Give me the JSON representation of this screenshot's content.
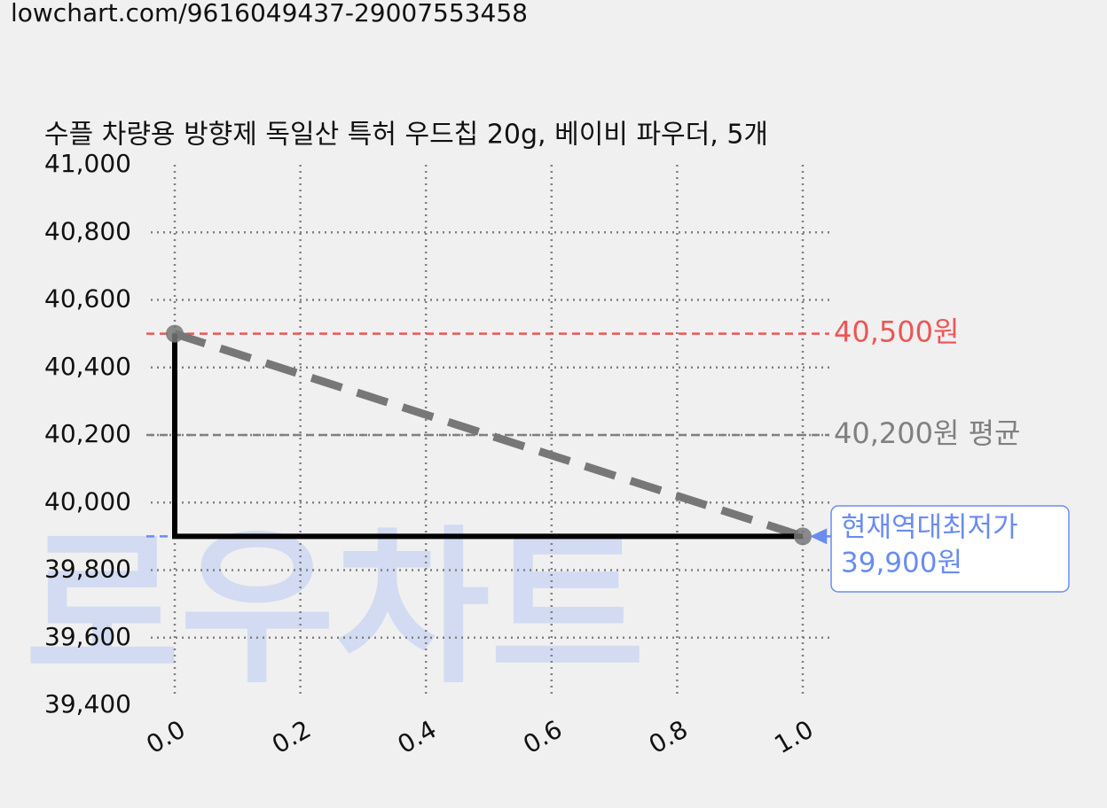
{
  "page_url": "lowchart.com/9616049437-29007553458",
  "watermark": "로우차트",
  "chart_data": {
    "type": "line",
    "title": "수플 차량용 방향제 독일산 특허 우드칩 20g, 베이비 파우더, 5개",
    "x": [
      0,
      1
    ],
    "series": [
      {
        "color": "#000000",
        "values": [
          40500,
          39900
        ]
      }
    ],
    "trend_color": "#777777",
    "xlim": [
      0,
      1
    ],
    "ylim": [
      39400,
      41000
    ],
    "xticks": [
      {
        "value": 0,
        "label": "0.0"
      },
      0.2,
      0.4,
      0.6,
      0.8,
      {
        "value": 1,
        "label": "1.0"
      }
    ],
    "yticks": [
      {
        "value": 39400,
        "label": "39,400"
      },
      {
        "value": 39600,
        "label": "39,600"
      },
      {
        "value": 39800,
        "label": "39,800"
      },
      {
        "value": 40000,
        "label": "40,000"
      },
      {
        "value": 40200,
        "label": "40,200"
      },
      {
        "value": 40400,
        "label": "40,400"
      },
      {
        "value": 40600,
        "label": "40,600"
      },
      {
        "value": 40800,
        "label": "40,800"
      },
      {
        "value": 41000,
        "label": "41,000"
      }
    ],
    "grid": true,
    "reference_lines": [
      {
        "value": 40500,
        "label": "40,500원",
        "color": "#ee5555"
      },
      {
        "value": 40200,
        "label": "40,200원 평균",
        "color": "#808080"
      }
    ],
    "lowest_annotation": {
      "value": 39900,
      "lines": [
        "현재역대최저가",
        "39,900원"
      ],
      "color": "#6a8cf0"
    }
  }
}
